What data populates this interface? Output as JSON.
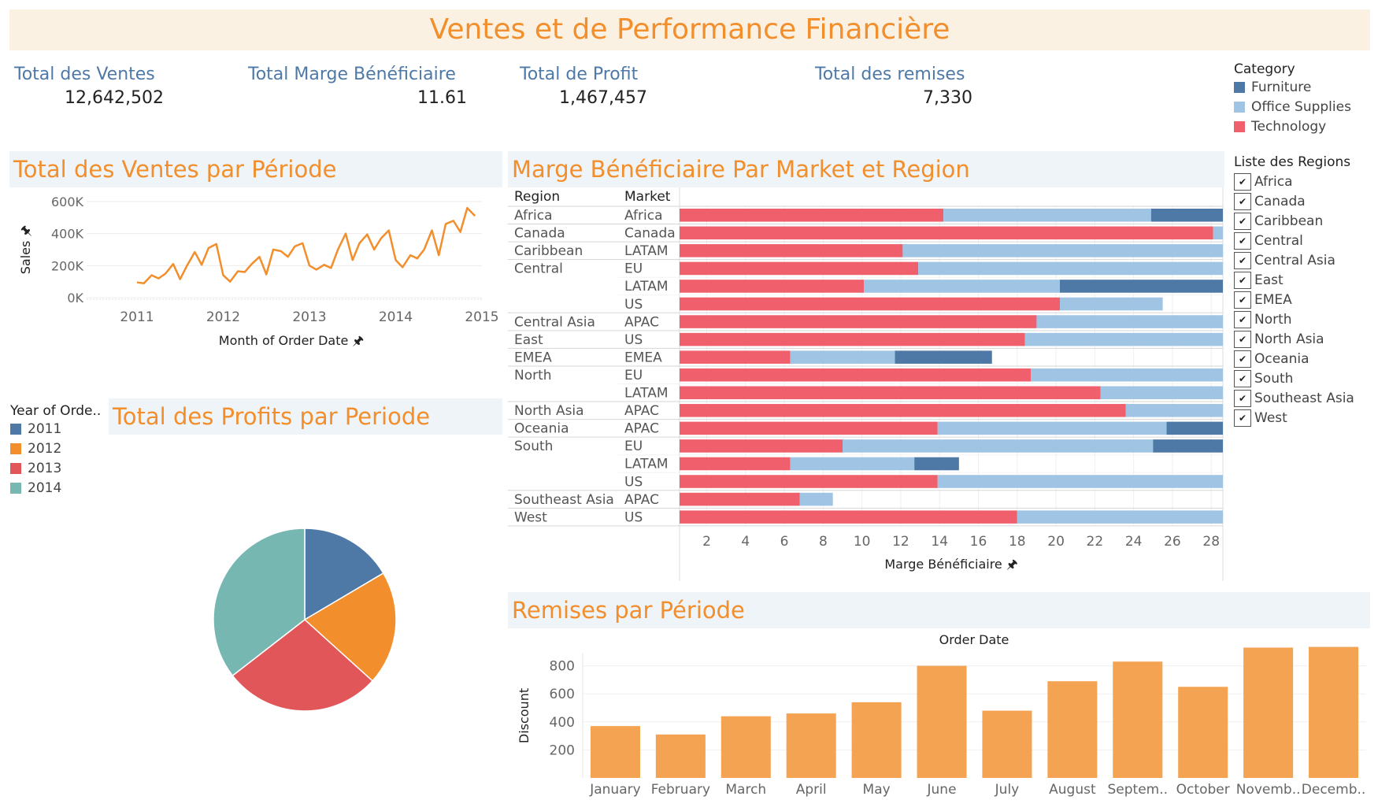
{
  "header": {
    "title": "Ventes et de Performance Financière"
  },
  "kpis": [
    {
      "label": "Total des Ventes",
      "value": "12,642,502"
    },
    {
      "label": "Total Marge Bénéficiaire",
      "value": "11.61"
    },
    {
      "label": "Total de Profit",
      "value": "1,467,457"
    },
    {
      "label": "Total des remises",
      "value": "7,330"
    }
  ],
  "sections": {
    "sales": "Total des Ventes par Période",
    "profits": "Total des Profits par Periode",
    "margin": "Marge Bénéficiaire Par Market et Region",
    "discount": "Remises par Période"
  },
  "category_legend": {
    "title": "Category",
    "items": [
      {
        "label": "Furniture",
        "color": "#4e79a7"
      },
      {
        "label": "Office Supplies",
        "color": "#a0c4e4"
      },
      {
        "label": "Technology",
        "color": "#f0606c"
      }
    ]
  },
  "year_legend": {
    "title": "Year of Orde..",
    "items": [
      {
        "label": "2011",
        "color": "#4e79a7"
      },
      {
        "label": "2012",
        "color": "#f28e2b"
      },
      {
        "label": "2013",
        "color": "#e15759"
      },
      {
        "label": "2014",
        "color": "#76b7b2"
      }
    ]
  },
  "region_filter": {
    "title": "Liste des Regions",
    "items": [
      "Africa",
      "Canada",
      "Caribbean",
      "Central",
      "Central Asia",
      "East",
      "EMEA",
      "North",
      "North Asia",
      "Oceania",
      "South",
      "Southeast Asia",
      "West"
    ]
  },
  "chart_data": [
    {
      "id": "sales",
      "type": "line",
      "xlabel": "Month of Order Date",
      "ylabel": "Sales",
      "x_ticks": [
        "2011",
        "2012",
        "2013",
        "2014",
        "2015"
      ],
      "y_ticks": [
        "0K",
        "200K",
        "400K",
        "600K"
      ],
      "ylim": [
        0,
        600000
      ],
      "xlim": [
        2011,
        2015
      ],
      "x": [
        2011.0,
        2011.08,
        2011.17,
        2011.25,
        2011.33,
        2011.42,
        2011.5,
        2011.58,
        2011.67,
        2011.75,
        2011.83,
        2011.92,
        2012.0,
        2012.08,
        2012.17,
        2012.25,
        2012.33,
        2012.42,
        2012.5,
        2012.58,
        2012.67,
        2012.75,
        2012.83,
        2012.92,
        2013.0,
        2013.08,
        2013.17,
        2013.25,
        2013.33,
        2013.42,
        2013.5,
        2013.58,
        2013.67,
        2013.75,
        2013.83,
        2013.92,
        2014.0,
        2014.08,
        2014.17,
        2014.25,
        2014.33,
        2014.42,
        2014.5,
        2014.58,
        2014.67,
        2014.75,
        2014.83,
        2014.92
      ],
      "values": [
        95000,
        90000,
        140000,
        120000,
        150000,
        210000,
        115000,
        200000,
        285000,
        205000,
        310000,
        335000,
        140000,
        100000,
        165000,
        160000,
        210000,
        255000,
        145000,
        300000,
        290000,
        255000,
        320000,
        340000,
        200000,
        175000,
        205000,
        185000,
        300000,
        400000,
        235000,
        340000,
        395000,
        300000,
        370000,
        420000,
        235000,
        190000,
        265000,
        245000,
        300000,
        420000,
        265000,
        460000,
        480000,
        410000,
        560000,
        510000
      ],
      "color": "#f28e2b"
    },
    {
      "id": "profits",
      "type": "pie",
      "slices": [
        {
          "name": "2011",
          "value": 16.5,
          "color": "#4e79a7"
        },
        {
          "name": "2012",
          "value": 20.2,
          "color": "#f28e2b"
        },
        {
          "name": "2013",
          "value": 27.8,
          "color": "#e15759"
        },
        {
          "name": "2014",
          "value": 35.5,
          "color": "#76b7b2"
        }
      ]
    },
    {
      "id": "margin",
      "type": "bar",
      "orientation": "horizontal",
      "stacked": true,
      "xlabel": "Marge Bénéficiaire",
      "x_ticks": [
        2,
        4,
        6,
        8,
        10,
        12,
        14,
        16,
        18,
        20,
        22,
        24,
        26,
        28
      ],
      "xlim": [
        0.6,
        28.6
      ],
      "row_headers": [
        "Region",
        "Market"
      ],
      "series_names": [
        "Technology",
        "Office Supplies",
        "Furniture"
      ],
      "series_colors": [
        "#f0606c",
        "#a0c4e4",
        "#4e79a7"
      ],
      "rows": [
        {
          "region": "Africa",
          "market": "Africa",
          "values": [
            13.6,
            10.7,
            4.5
          ]
        },
        {
          "region": "Canada",
          "market": "Canada",
          "values": [
            27.5,
            1.5,
            0
          ]
        },
        {
          "region": "Caribbean",
          "market": "LATAM",
          "values": [
            11.5,
            16.5,
            0.6
          ]
        },
        {
          "region": "Central",
          "market": "EU",
          "values": [
            12.3,
            16.0,
            0.3
          ]
        },
        {
          "region": "",
          "market": "LATAM",
          "values": [
            9.5,
            10.1,
            8.6
          ]
        },
        {
          "region": "",
          "market": "US",
          "values": [
            19.6,
            5.3,
            0
          ]
        },
        {
          "region": "Central Asia",
          "market": "APAC",
          "values": [
            18.4,
            10.7,
            0
          ]
        },
        {
          "region": "East",
          "market": "US",
          "values": [
            17.8,
            12.3,
            0
          ]
        },
        {
          "region": "EMEA",
          "market": "EMEA",
          "values": [
            5.7,
            5.4,
            5.0
          ]
        },
        {
          "region": "North",
          "market": "EU",
          "values": [
            18.1,
            12.2,
            0
          ]
        },
        {
          "region": "",
          "market": "LATAM",
          "values": [
            21.7,
            8.3,
            0
          ]
        },
        {
          "region": "North Asia",
          "market": "APAC",
          "values": [
            23.0,
            5.8,
            0
          ]
        },
        {
          "region": "Oceania",
          "market": "APAC",
          "values": [
            13.3,
            11.8,
            3.5
          ]
        },
        {
          "region": "South",
          "market": "EU",
          "values": [
            8.4,
            16.0,
            4.3
          ]
        },
        {
          "region": "",
          "market": "LATAM",
          "values": [
            5.7,
            6.4,
            2.3
          ]
        },
        {
          "region": "",
          "market": "US",
          "values": [
            13.3,
            15.3,
            0
          ]
        },
        {
          "region": "Southeast Asia",
          "market": "APAC",
          "values": [
            6.2,
            1.7,
            0
          ]
        },
        {
          "region": "West",
          "market": "US",
          "values": [
            17.4,
            11.2,
            0
          ]
        }
      ]
    },
    {
      "id": "discount",
      "type": "bar",
      "title": "Order Date",
      "ylabel": "Discount",
      "y_ticks": [
        200,
        400,
        600,
        800
      ],
      "ylim": [
        0,
        1000
      ],
      "categories": [
        "January",
        "February",
        "March",
        "April",
        "May",
        "June",
        "July",
        "August",
        "Septem..",
        "October",
        "Novemb..",
        "Decemb.."
      ],
      "values": [
        370,
        310,
        440,
        460,
        540,
        800,
        480,
        690,
        830,
        650,
        930,
        935
      ],
      "color": "#f4a352"
    }
  ]
}
